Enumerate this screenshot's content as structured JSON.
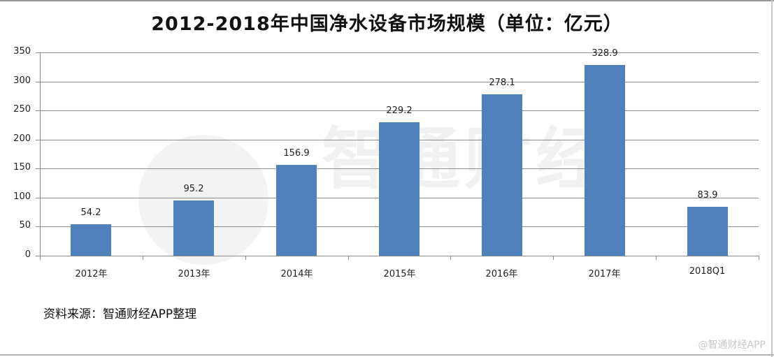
{
  "chart_data": {
    "type": "bar",
    "title": "2012-2018年中国净水设备市场规模（单位：亿元）",
    "xlabel": "",
    "ylabel": "",
    "categories": [
      "2012年",
      "2013年",
      "2014年",
      "2015年",
      "2016年",
      "2017年",
      "2018Q1"
    ],
    "values": [
      54.2,
      95.2,
      156.9,
      229.2,
      278.1,
      328.9,
      83.9
    ],
    "value_labels": [
      "54.2",
      "95.2",
      "156.9",
      "229.2",
      "278.1",
      "328.9",
      "83.9"
    ],
    "ylim": [
      0,
      350
    ],
    "yticks": [
      "0",
      "50",
      "100",
      "150",
      "200",
      "250",
      "300",
      "350"
    ],
    "grid": true,
    "legend": null,
    "bar_color": "#4f81bd"
  },
  "source_note": "资料来源：智通财经APP整理",
  "watermark": {
    "center_text": "智通财经",
    "corner_text": "@智通财经APP"
  }
}
